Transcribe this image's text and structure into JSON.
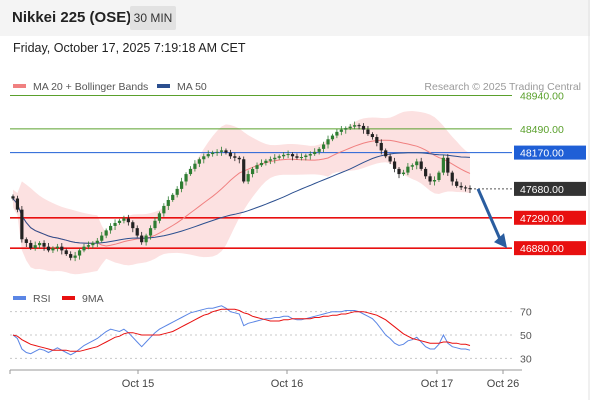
{
  "header": {
    "title": "Nikkei 225 (OSE)",
    "timeframe": "30 MIN"
  },
  "timestamp": "Friday, October 17, 2025 7:19:18 AM CET",
  "colors": {
    "ma20": "#f08080",
    "ma50": "#2b4f8f",
    "bollinger_fill": "#fbd7d7",
    "green_level": "#5aa02c",
    "blue_level": "#1f5fd6",
    "red_level": "#e81010",
    "current": "#333333",
    "rsi": "#5b86e5",
    "rsi_ma": "#e81010",
    "candle_up": "#2e7d32",
    "candle_down": "#222222",
    "arrow": "#2a5d9f"
  },
  "chart_data": [
    {
      "type": "candlestick",
      "legend": [
        {
          "label": "MA 20 + Bollinger Bands",
          "color": "#f08080"
        },
        {
          "label": "MA 50",
          "color": "#2b4f8f"
        }
      ],
      "credit": "Research © 2025 Trading Central",
      "x_ticks": [
        "Oct 15",
        "Oct 16",
        "Oct 17",
        "Oct 26"
      ],
      "ylim": [
        46450,
        49150
      ],
      "levels": [
        {
          "value": 48940,
          "label": "48940.00",
          "kind": "resistance"
        },
        {
          "value": 48490,
          "label": "48490.00",
          "kind": "resistance"
        },
        {
          "value": 48170,
          "label": "48170.00",
          "kind": "pivot"
        },
        {
          "value": 47680,
          "label": "47680.00",
          "kind": "current"
        },
        {
          "value": 47290,
          "label": "47290.00",
          "kind": "support"
        },
        {
          "value": 46880,
          "label": "46880.00",
          "kind": "support"
        }
      ],
      "close": [
        47550,
        47400,
        47000,
        46950,
        46880,
        46920,
        46950,
        46900,
        46850,
        46880,
        46900,
        46850,
        46800,
        46750,
        46780,
        46850,
        46900,
        46920,
        46950,
        46980,
        47050,
        47120,
        47180,
        47220,
        47250,
        47280,
        47230,
        47150,
        47050,
        46960,
        47050,
        47150,
        47250,
        47350,
        47450,
        47530,
        47600,
        47680,
        47780,
        47880,
        47950,
        48020,
        48080,
        48120,
        48150,
        48170,
        48180,
        48200,
        48170,
        48120,
        48100,
        48080,
        47780,
        47880,
        47950,
        48000,
        48030,
        48060,
        48080,
        48100,
        48120,
        48140,
        48150,
        48120,
        48100,
        48110,
        48130,
        48150,
        48180,
        48220,
        48280,
        48350,
        48400,
        48450,
        48480,
        48500,
        48520,
        48540,
        48530,
        48480,
        48420,
        48380,
        48300,
        48200,
        48120,
        48050,
        47950,
        47880,
        47900,
        47980,
        48000,
        48050,
        47950,
        47850,
        47780,
        47800,
        47900,
        48100,
        47900,
        47780,
        47720,
        47700,
        47690,
        47680
      ]
    },
    {
      "type": "line",
      "legend": [
        {
          "label": "RSI",
          "color": "#5b86e5"
        },
        {
          "label": "9MA",
          "color": "#e81010"
        }
      ],
      "ylim": [
        20,
        80
      ],
      "y_ticks": [
        70,
        50,
        30
      ],
      "series": [
        {
          "name": "RSI",
          "values": [
            50,
            47,
            38,
            35,
            34,
            36,
            38,
            37,
            35,
            37,
            39,
            37,
            35,
            33,
            35,
            38,
            41,
            43,
            45,
            47,
            50,
            53,
            55,
            54,
            53,
            55,
            52,
            48,
            44,
            40,
            44,
            48,
            52,
            55,
            57,
            59,
            61,
            63,
            65,
            67,
            69,
            70,
            71,
            72,
            73,
            73,
            74,
            75,
            73,
            70,
            69,
            68,
            58,
            60,
            61,
            62,
            63,
            64,
            64,
            65,
            65,
            66,
            66,
            64,
            63,
            63,
            64,
            65,
            66,
            67,
            68,
            69,
            70,
            70,
            70,
            71,
            71,
            71,
            70,
            68,
            66,
            64,
            60,
            55,
            50,
            47,
            43,
            41,
            42,
            45,
            46,
            48,
            44,
            40,
            38,
            38,
            42,
            50,
            43,
            40,
            39,
            38,
            38,
            37
          ]
        },
        {
          "name": "9MA",
          "values": [
            50,
            49,
            46,
            44,
            42,
            41,
            40,
            39,
            38,
            37,
            37,
            37,
            37,
            36,
            36,
            36,
            37,
            38,
            39,
            40,
            42,
            44,
            46,
            48,
            49,
            51,
            52,
            52,
            51,
            50,
            50,
            50,
            50,
            50,
            51,
            52,
            53,
            55,
            57,
            59,
            61,
            63,
            65,
            67,
            68,
            70,
            71,
            72,
            72,
            72,
            72,
            71,
            69,
            68,
            66,
            65,
            64,
            63,
            62,
            62,
            62,
            63,
            63,
            64,
            64,
            64,
            64,
            64,
            65,
            65,
            66,
            66,
            67,
            67,
            68,
            68,
            69,
            70,
            70,
            70,
            69,
            68,
            67,
            65,
            63,
            60,
            57,
            54,
            51,
            49,
            47,
            46,
            45,
            44,
            43,
            43,
            43,
            44,
            44,
            43,
            43,
            42,
            42,
            41
          ]
        }
      ]
    }
  ]
}
